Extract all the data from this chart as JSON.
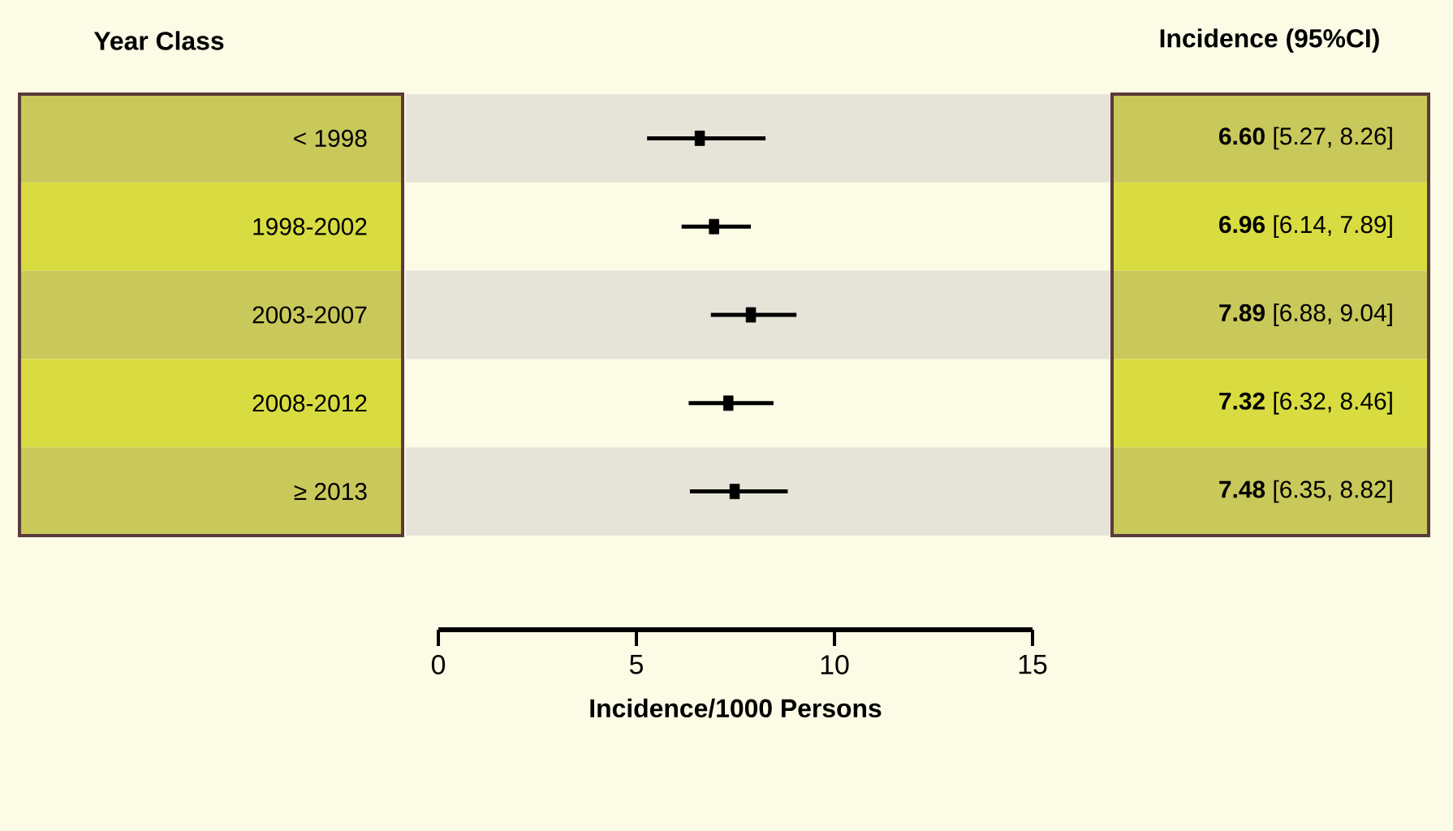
{
  "chart_data": {
    "type": "scatter",
    "orientation": "horizontal",
    "ylabel": "Year Class",
    "y2label": "Incidence (95%CI)",
    "xlabel": "Incidence/1000 Persons",
    "categories": [
      "< 1998",
      "1998-2002",
      "2003-2007",
      "2008-2012",
      "≥ 2013"
    ],
    "values": [
      6.6,
      6.96,
      7.89,
      7.32,
      7.48
    ],
    "errors": [
      [
        5.27,
        8.26
      ],
      [
        6.14,
        7.89
      ],
      [
        6.88,
        9.04
      ],
      [
        6.32,
        8.46
      ],
      [
        6.35,
        8.82
      ]
    ],
    "value_labels": [
      "**6.60** [5.27, 8.26]",
      "**6.96** [6.14, 7.89]",
      "**7.89** [6.88, 9.04]",
      "**7.32** [6.32, 8.46]",
      "**7.48** [6.35, 8.82]"
    ],
    "color": "#000000",
    "marker": "square",
    "xlim": [
      0,
      15
    ],
    "xticks": [
      {
        "value": 0,
        "label": "0"
      },
      {
        "value": 5,
        "label": "5"
      },
      {
        "value": 10,
        "label": "10"
      },
      {
        "value": 15,
        "label": "15"
      }
    ]
  }
}
